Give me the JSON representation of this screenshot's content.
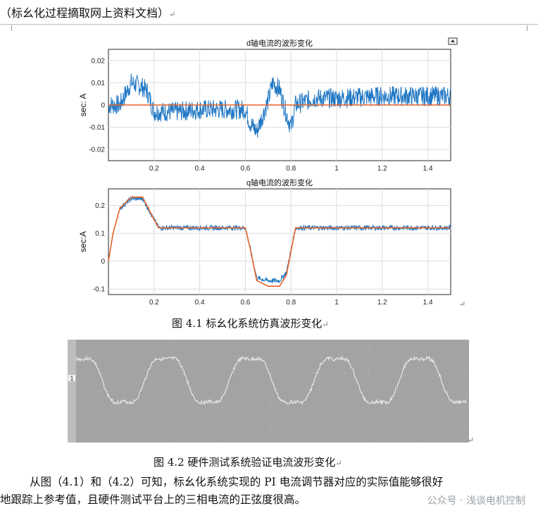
{
  "header": {
    "text": "（标幺化过程摘取网上资料文档）",
    "return_mark": "↵"
  },
  "figure1": {
    "caption": "图 4.1  标幺化系统仿真波形变化",
    "export_icon": "export-icon",
    "chart_data": [
      {
        "type": "line",
        "title": "d轴电流的波形变化",
        "ylabel": "sec:  A",
        "xlabel": "",
        "xlim": [
          0,
          1.5
        ],
        "ylim": [
          -0.025,
          0.025
        ],
        "xticks": [
          "0.2",
          "0.4",
          "0.6",
          "0.8",
          "1",
          "1.2",
          "1.4"
        ],
        "yticks": [
          "0.02",
          "0.01",
          "0",
          "-0.01",
          "-0.02"
        ],
        "grid": true,
        "series": [
          {
            "color": "#1f77c4",
            "x": [
              0,
              0.05,
              0.1,
              0.15,
              0.17,
              0.2,
              0.3,
              0.4,
              0.5,
              0.6,
              0.62,
              0.65,
              0.7,
              0.72,
              0.75,
              0.78,
              0.8,
              0.82,
              0.9,
              1.0,
              1.2,
              1.4,
              1.5
            ],
            "y": [
              0,
              0.0,
              0.01,
              0.008,
              0.006,
              -0.003,
              -0.003,
              -0.002,
              -0.002,
              -0.002,
              -0.008,
              -0.012,
              0.002,
              0.01,
              0.007,
              -0.004,
              -0.01,
              0,
              0.003,
              0.003,
              0.004,
              0.004,
              0.004
            ]
          },
          {
            "color": "#e8622a",
            "x": [
              0,
              1.5
            ],
            "y": [
              0,
              0
            ]
          }
        ]
      },
      {
        "type": "line",
        "title": "q轴电流的波形变化",
        "ylabel": "sec:A",
        "xlabel": "",
        "xlim": [
          0,
          1.5
        ],
        "ylim": [
          -0.12,
          0.26
        ],
        "xticks": [
          "0.2",
          "0.4",
          "0.6",
          "0.8",
          "1",
          "1.2",
          "1.4"
        ],
        "yticks": [
          "0.2",
          "0.1",
          "0",
          "-0.1"
        ],
        "grid": true,
        "series": [
          {
            "color": "#1f77c4",
            "x": [
              0,
              0.02,
              0.05,
              0.1,
              0.15,
              0.2,
              0.22,
              0.4,
              0.6,
              0.62,
              0.65,
              0.7,
              0.75,
              0.78,
              0.82,
              1.0,
              1.5
            ],
            "y": [
              0,
              0.1,
              0.19,
              0.225,
              0.225,
              0.15,
              0.12,
              0.12,
              0.12,
              0.05,
              -0.06,
              -0.07,
              -0.07,
              -0.04,
              0.12,
              0.12,
              0.12
            ]
          },
          {
            "color": "#e8622a",
            "x": [
              0,
              0.02,
              0.05,
              0.1,
              0.15,
              0.2,
              0.22,
              0.4,
              0.6,
              0.62,
              0.65,
              0.7,
              0.75,
              0.78,
              0.82,
              1.0,
              1.5
            ],
            "y": [
              0,
              0.1,
              0.19,
              0.23,
              0.23,
              0.15,
              0.12,
              0.12,
              0.12,
              0.05,
              -0.07,
              -0.09,
              -0.09,
              -0.05,
              0.12,
              0.12,
              0.12
            ]
          }
        ]
      }
    ]
  },
  "figure2": {
    "caption": "图 4.2  硬件测试系统验证电流波形变化",
    "channel_marker": "1",
    "trace_color": "#e6e6e6"
  },
  "paragraph": {
    "line1": "从图（4.1）和（4.2）可知，标幺化系统实现的 PI 电流调节器对应的实际值能够很好",
    "line2": "地跟踪上参考值，且硬件测试平台上的三相电流的正弦度很高。"
  },
  "watermark": "公众号 · 浅谈电机控制"
}
